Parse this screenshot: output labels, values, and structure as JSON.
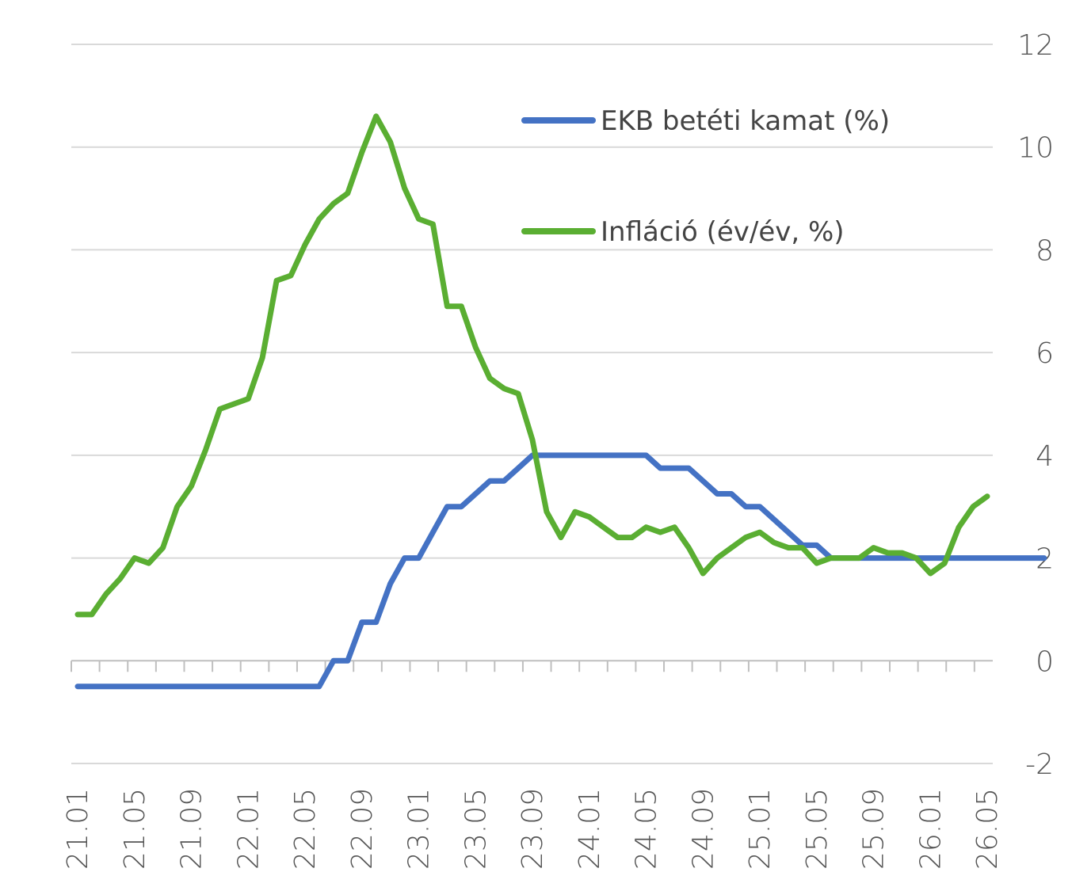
{
  "chart_data": {
    "type": "line",
    "title": "",
    "xlabel": "",
    "ylabel": "",
    "ylim": [
      -2,
      12
    ],
    "y_ticks": [
      -2,
      0,
      2,
      4,
      6,
      8,
      10,
      12
    ],
    "y_tick_labels": [
      "-2",
      "0",
      "2",
      "4",
      "6",
      "8",
      "10",
      "12"
    ],
    "x_tick_labels": [
      "21.01",
      "21.05",
      "21.09",
      "22.01",
      "22.05",
      "22.09",
      "23.01",
      "23.05",
      "23.09",
      "24.01",
      "24.05",
      "24.09",
      "25.01",
      "25.05",
      "25.09",
      "26.01",
      "26.05"
    ],
    "y_axis_position": "right",
    "grid": true,
    "legend_position": "top-right",
    "series": [
      {
        "name": "EKB betéti kamat (%)",
        "color": "#4472C4",
        "values": [
          -0.5,
          -0.5,
          -0.5,
          -0.5,
          -0.5,
          -0.5,
          -0.5,
          -0.5,
          -0.5,
          -0.5,
          -0.5,
          -0.5,
          -0.5,
          -0.5,
          -0.5,
          -0.5,
          -0.5,
          -0.5,
          0,
          0,
          0.75,
          0.75,
          1.5,
          2,
          2,
          2.5,
          3,
          3,
          3.25,
          3.5,
          3.5,
          3.75,
          4,
          4,
          4,
          4,
          4,
          4,
          4,
          4,
          4,
          3.75,
          3.75,
          3.75,
          3.5,
          3.25,
          3.25,
          3,
          3,
          2.75,
          2.5,
          2.25,
          2.25,
          2,
          2,
          2,
          2,
          2,
          2,
          2,
          2,
          2,
          2,
          2,
          2,
          2,
          2,
          2,
          2
        ]
      },
      {
        "name": "Infláció (év/év, %)",
        "color": "#5AAE32",
        "values": [
          0.9,
          0.9,
          1.3,
          1.6,
          2.0,
          1.9,
          2.2,
          3.0,
          3.4,
          4.1,
          4.9,
          5.0,
          5.1,
          5.9,
          7.4,
          7.5,
          8.1,
          8.6,
          8.9,
          9.1,
          9.9,
          10.6,
          10.1,
          9.2,
          8.6,
          8.5,
          6.9,
          6.9,
          6.1,
          5.5,
          5.3,
          5.2,
          4.3,
          2.9,
          2.4,
          2.9,
          2.8,
          2.6,
          2.4,
          2.4,
          2.6,
          2.5,
          2.6,
          2.2,
          1.7,
          2.0,
          2.2,
          2.4,
          2.5,
          2.3,
          2.2,
          2.2,
          1.9,
          2.0,
          2.0,
          2.0,
          2.2,
          2.1,
          2.1,
          2.0,
          1.7,
          1.9,
          2.6,
          3.0,
          3.2
        ]
      }
    ]
  }
}
